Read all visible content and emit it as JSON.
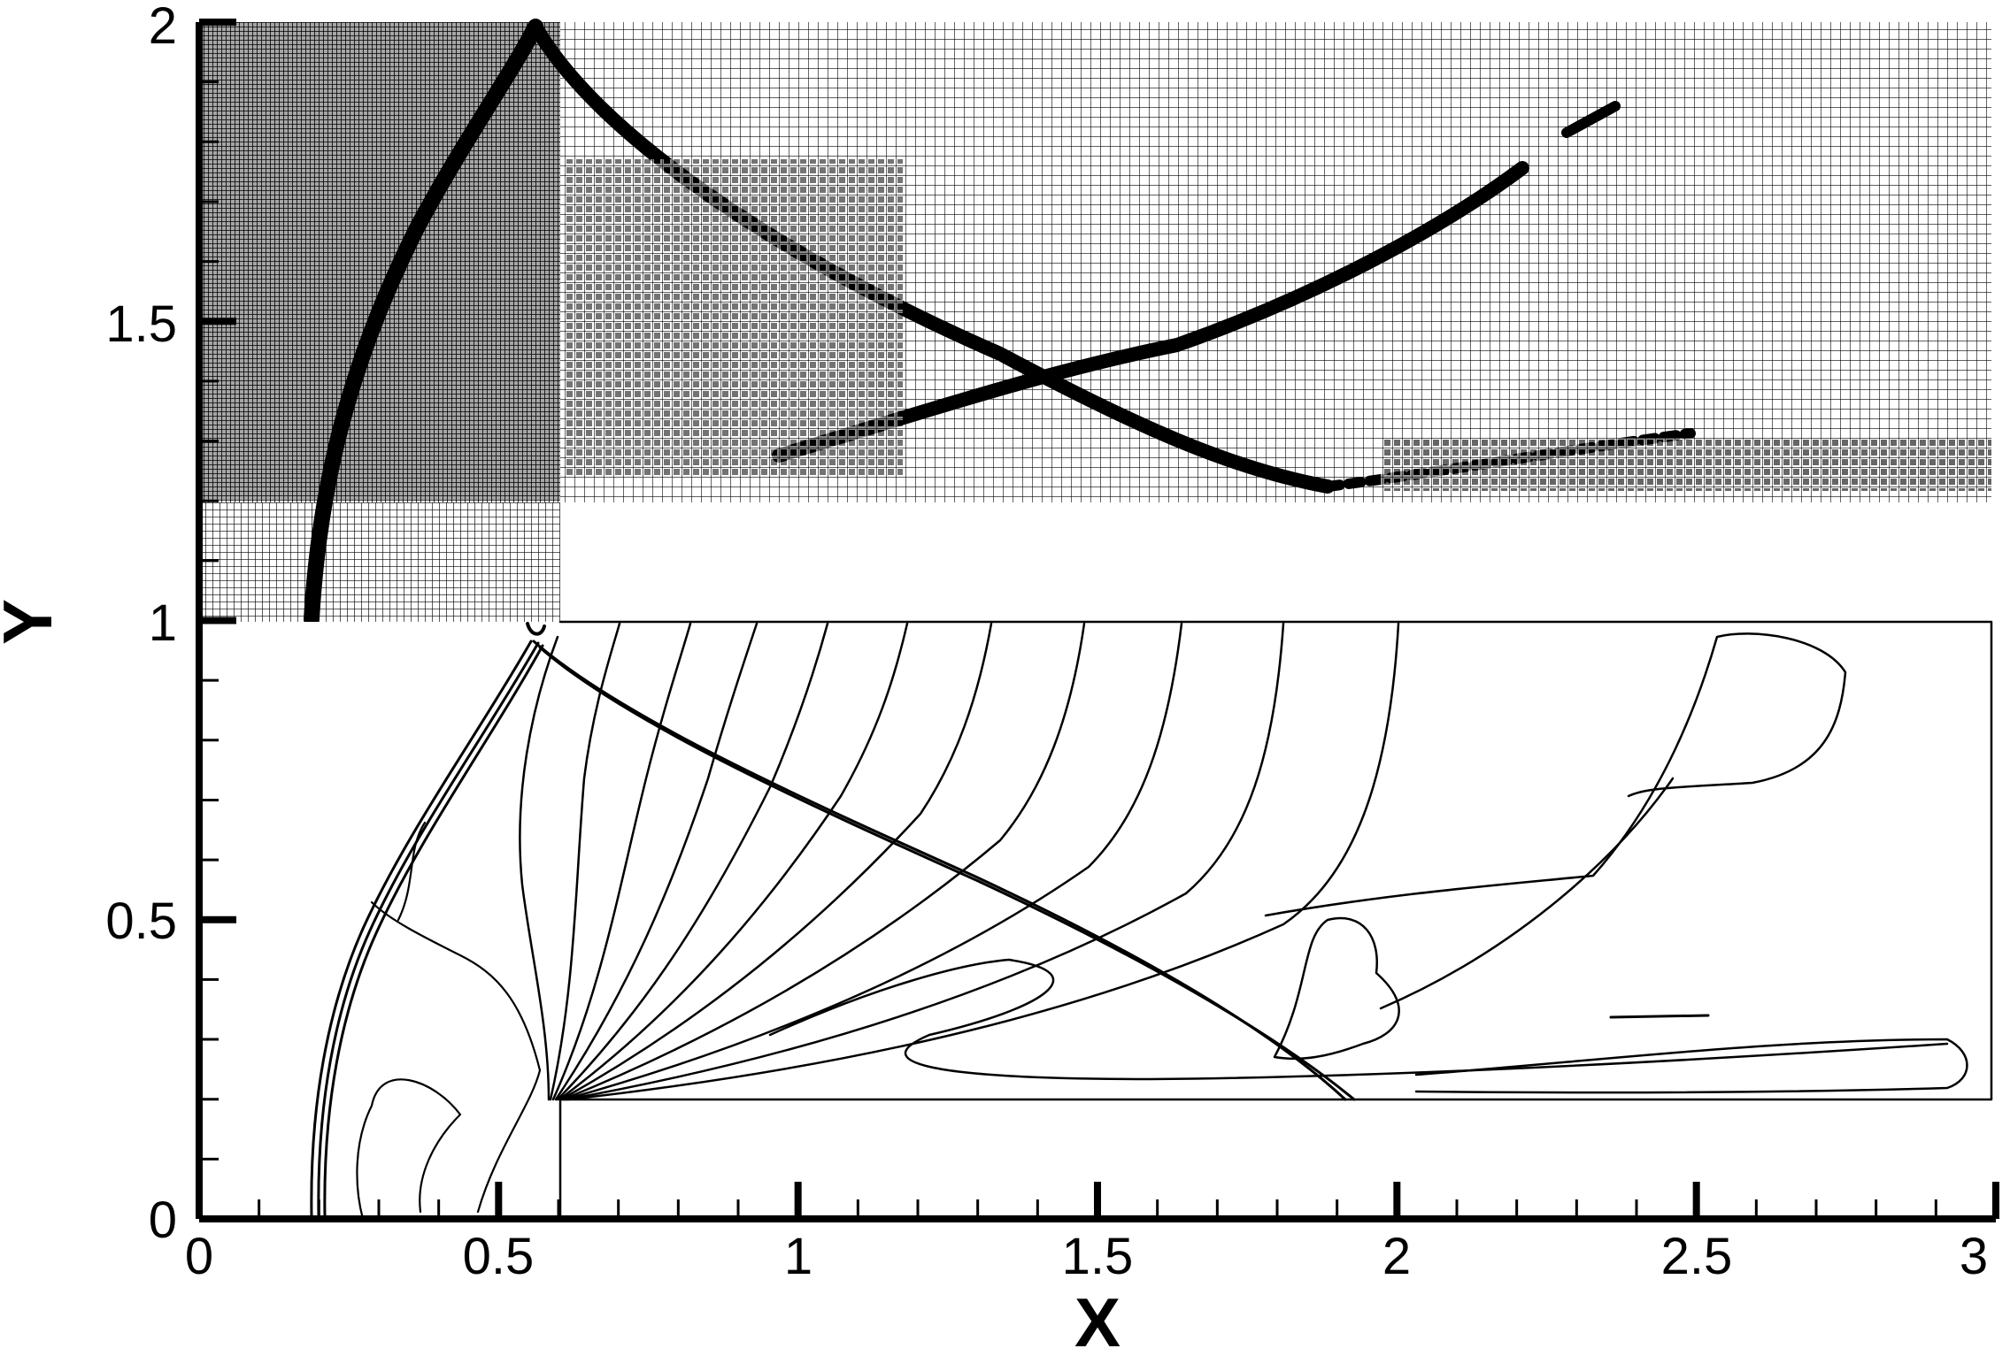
{
  "figure": {
    "x_axis_title": "X",
    "y_axis_title": "Y",
    "x_ticks": [
      "0",
      "0.5",
      "1",
      "1.5",
      "2",
      "2.5",
      "3"
    ],
    "y_ticks": [
      "0",
      "0.5",
      "1",
      "1.5",
      "2"
    ],
    "x_range": [
      0,
      3
    ],
    "y_range": [
      0,
      2
    ],
    "upper_panel": "adaptive-mesh",
    "lower_panel": "density-contours"
  }
}
